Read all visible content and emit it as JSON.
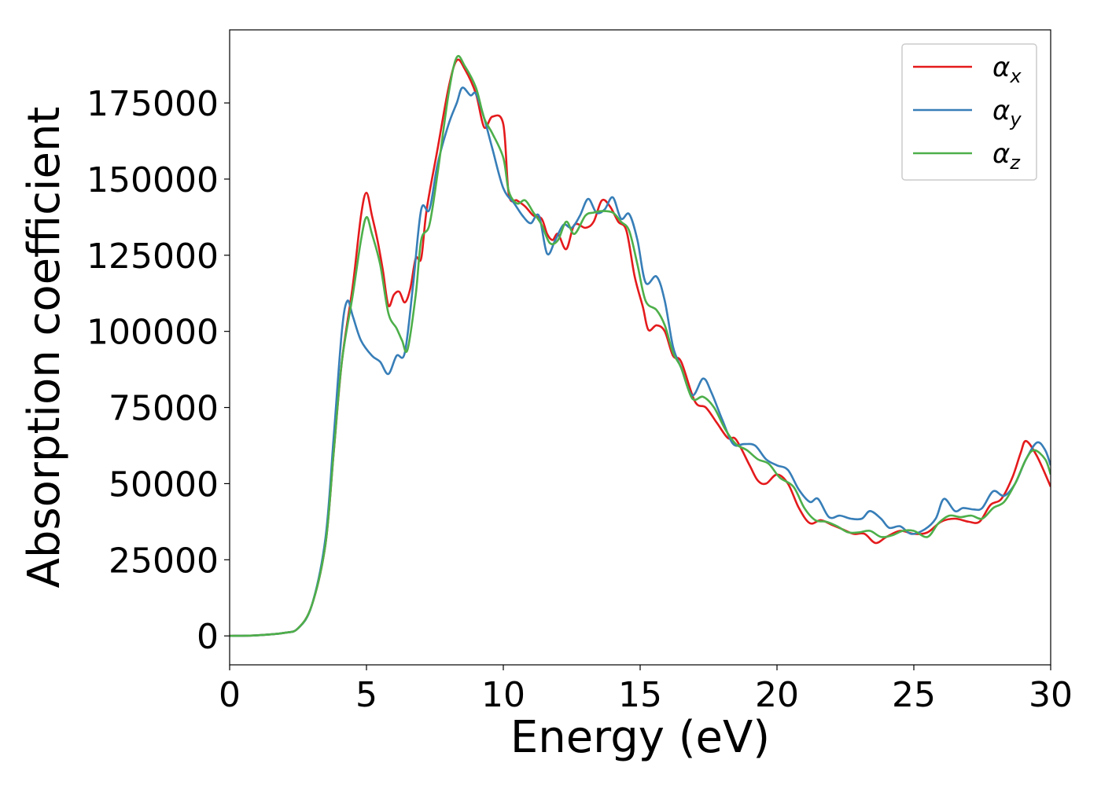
{
  "chart_data": {
    "type": "line",
    "xlabel": "Energy (eV)",
    "ylabel": "Absorption coefficient",
    "xlim": [
      0,
      30
    ],
    "ylim": [
      -9500,
      199000
    ],
    "xticks": [
      0,
      5,
      10,
      15,
      20,
      25,
      30
    ],
    "xtick_labels": [
      "0",
      "5",
      "10",
      "15",
      "20",
      "25",
      "30"
    ],
    "yticks": [
      0,
      25000,
      50000,
      75000,
      100000,
      125000,
      150000,
      175000
    ],
    "ytick_labels": [
      "0",
      "25000",
      "50000",
      "75000",
      "100000",
      "125000",
      "150000",
      "175000"
    ],
    "grid": false,
    "legend_position": "top-right",
    "series": [
      {
        "name": "αx",
        "legend_base": "α",
        "legend_sub": "x",
        "color": "#e41a1c",
        "points": [
          [
            0,
            0
          ],
          [
            1,
            200
          ],
          [
            2,
            1000
          ],
          [
            2.5,
            2500
          ],
          [
            3,
            10000
          ],
          [
            3.5,
            30000
          ],
          [
            3.8,
            60000
          ],
          [
            4.1,
            90000
          ],
          [
            4.5,
            115000
          ],
          [
            4.8,
            138000
          ],
          [
            5.0,
            145500
          ],
          [
            5.2,
            138000
          ],
          [
            5.4,
            130000
          ],
          [
            5.6,
            120000
          ],
          [
            5.8,
            108500
          ],
          [
            6.0,
            112000
          ],
          [
            6.2,
            113000
          ],
          [
            6.4,
            109500
          ],
          [
            6.6,
            114000
          ],
          [
            6.8,
            124000
          ],
          [
            7.0,
            124000
          ],
          [
            7.2,
            140000
          ],
          [
            7.6,
            160000
          ],
          [
            8.0,
            180000
          ],
          [
            8.3,
            189000
          ],
          [
            8.6,
            186000
          ],
          [
            9.0,
            178000
          ],
          [
            9.3,
            167000
          ],
          [
            9.6,
            170500
          ],
          [
            10.0,
            168000
          ],
          [
            10.2,
            145000
          ],
          [
            10.5,
            143000
          ],
          [
            10.8,
            141000
          ],
          [
            11.1,
            138000
          ],
          [
            11.4,
            137000
          ],
          [
            11.6,
            132000
          ],
          [
            11.8,
            130000
          ],
          [
            12.0,
            132000
          ],
          [
            12.3,
            127000
          ],
          [
            12.6,
            135000
          ],
          [
            13.0,
            134000
          ],
          [
            13.3,
            136000
          ],
          [
            13.6,
            143000
          ],
          [
            13.9,
            141000
          ],
          [
            14.2,
            136000
          ],
          [
            14.5,
            133000
          ],
          [
            14.8,
            118000
          ],
          [
            15.1,
            108000
          ],
          [
            15.3,
            100500
          ],
          [
            15.6,
            102000
          ],
          [
            15.9,
            100000
          ],
          [
            16.2,
            92000
          ],
          [
            16.5,
            90000
          ],
          [
            17.0,
            77000
          ],
          [
            17.4,
            75000
          ],
          [
            17.8,
            70000
          ],
          [
            18.2,
            65000
          ],
          [
            18.5,
            64500
          ],
          [
            19.0,
            56000
          ],
          [
            19.3,
            51000
          ],
          [
            19.6,
            50000
          ],
          [
            20.0,
            53000
          ],
          [
            20.4,
            50000
          ],
          [
            20.8,
            42000
          ],
          [
            21.2,
            37000
          ],
          [
            21.6,
            38000
          ],
          [
            22.0,
            36500
          ],
          [
            22.4,
            35000
          ],
          [
            22.8,
            33500
          ],
          [
            23.2,
            33500
          ],
          [
            23.6,
            30500
          ],
          [
            24.0,
            32500
          ],
          [
            24.5,
            34500
          ],
          [
            25.0,
            33500
          ],
          [
            25.5,
            34000
          ],
          [
            26.0,
            37500
          ],
          [
            26.5,
            38500
          ],
          [
            27.0,
            37500
          ],
          [
            27.4,
            37500
          ],
          [
            27.8,
            43000
          ],
          [
            28.2,
            45000
          ],
          [
            28.6,
            52000
          ],
          [
            28.9,
            60000
          ],
          [
            29.1,
            64000
          ],
          [
            29.5,
            59000
          ],
          [
            30,
            49000
          ]
        ]
      },
      {
        "name": "αy",
        "legend_base": "α",
        "legend_sub": "y",
        "color": "#377eb8",
        "points": [
          [
            0,
            0
          ],
          [
            1,
            200
          ],
          [
            2,
            1000
          ],
          [
            2.5,
            2500
          ],
          [
            3,
            10000
          ],
          [
            3.5,
            32000
          ],
          [
            3.8,
            65000
          ],
          [
            4.1,
            100000
          ],
          [
            4.3,
            110000
          ],
          [
            4.5,
            105000
          ],
          [
            4.8,
            97000
          ],
          [
            5.2,
            92000
          ],
          [
            5.5,
            90000
          ],
          [
            5.8,
            86000
          ],
          [
            6.1,
            92000
          ],
          [
            6.4,
            93000
          ],
          [
            6.7,
            115000
          ],
          [
            7.0,
            140000
          ],
          [
            7.3,
            140000
          ],
          [
            7.6,
            155000
          ],
          [
            8.0,
            168000
          ],
          [
            8.3,
            175000
          ],
          [
            8.5,
            180000
          ],
          [
            8.8,
            177500
          ],
          [
            9.0,
            178000
          ],
          [
            9.3,
            170000
          ],
          [
            9.6,
            160000
          ],
          [
            10.0,
            147000
          ],
          [
            10.4,
            142000
          ],
          [
            10.7,
            138000
          ],
          [
            11.0,
            135500
          ],
          [
            11.3,
            138000
          ],
          [
            11.6,
            125500
          ],
          [
            11.9,
            130000
          ],
          [
            12.2,
            135000
          ],
          [
            12.5,
            134000
          ],
          [
            12.8,
            138000
          ],
          [
            13.1,
            143500
          ],
          [
            13.4,
            139000
          ],
          [
            13.7,
            140000
          ],
          [
            14.0,
            144000
          ],
          [
            14.3,
            137000
          ],
          [
            14.6,
            138500
          ],
          [
            14.9,
            130000
          ],
          [
            15.2,
            116000
          ],
          [
            15.6,
            118000
          ],
          [
            15.9,
            110000
          ],
          [
            16.2,
            95000
          ],
          [
            16.5,
            88000
          ],
          [
            16.9,
            79000
          ],
          [
            17.3,
            84500
          ],
          [
            17.6,
            80000
          ],
          [
            18.0,
            71000
          ],
          [
            18.4,
            63000
          ],
          [
            18.8,
            63000
          ],
          [
            19.2,
            62500
          ],
          [
            19.6,
            58000
          ],
          [
            20.0,
            56000
          ],
          [
            20.4,
            54500
          ],
          [
            20.8,
            48000
          ],
          [
            21.2,
            44000
          ],
          [
            21.5,
            45000
          ],
          [
            21.9,
            39000
          ],
          [
            22.3,
            39500
          ],
          [
            22.7,
            38500
          ],
          [
            23.1,
            38500
          ],
          [
            23.4,
            41000
          ],
          [
            23.8,
            38500
          ],
          [
            24.1,
            35500
          ],
          [
            24.5,
            36000
          ],
          [
            24.9,
            33500
          ],
          [
            25.4,
            35000
          ],
          [
            25.8,
            38500
          ],
          [
            26.1,
            45000
          ],
          [
            26.5,
            41000
          ],
          [
            26.8,
            42000
          ],
          [
            27.2,
            41500
          ],
          [
            27.5,
            42000
          ],
          [
            27.9,
            47500
          ],
          [
            28.3,
            46000
          ],
          [
            28.7,
            50000
          ],
          [
            29.1,
            58000
          ],
          [
            29.5,
            63500
          ],
          [
            29.8,
            61000
          ],
          [
            30,
            56000
          ]
        ]
      },
      {
        "name": "αz",
        "legend_base": "α",
        "legend_sub": "z",
        "color": "#4daf4a",
        "points": [
          [
            0,
            0
          ],
          [
            1,
            200
          ],
          [
            2,
            1000
          ],
          [
            2.5,
            2500
          ],
          [
            3,
            10000
          ],
          [
            3.5,
            30000
          ],
          [
            3.8,
            60000
          ],
          [
            4.1,
            90000
          ],
          [
            4.5,
            112000
          ],
          [
            4.8,
            130000
          ],
          [
            5.0,
            137500
          ],
          [
            5.2,
            132000
          ],
          [
            5.5,
            122000
          ],
          [
            5.8,
            106000
          ],
          [
            6.1,
            101000
          ],
          [
            6.3,
            97000
          ],
          [
            6.5,
            94000
          ],
          [
            6.8,
            112000
          ],
          [
            7.0,
            130000
          ],
          [
            7.3,
            135000
          ],
          [
            7.6,
            152000
          ],
          [
            8.0,
            178000
          ],
          [
            8.3,
            190000
          ],
          [
            8.6,
            187000
          ],
          [
            9.0,
            180000
          ],
          [
            9.3,
            170000
          ],
          [
            9.6,
            165000
          ],
          [
            10.0,
            157000
          ],
          [
            10.2,
            146000
          ],
          [
            10.5,
            142000
          ],
          [
            10.8,
            143000
          ],
          [
            11.1,
            139000
          ],
          [
            11.4,
            135000
          ],
          [
            11.7,
            129000
          ],
          [
            12.0,
            130000
          ],
          [
            12.3,
            136000
          ],
          [
            12.6,
            132000
          ],
          [
            13.0,
            138000
          ],
          [
            13.3,
            139000
          ],
          [
            13.6,
            139500
          ],
          [
            14.0,
            139000
          ],
          [
            14.3,
            136000
          ],
          [
            14.6,
            133000
          ],
          [
            14.9,
            122000
          ],
          [
            15.2,
            110000
          ],
          [
            15.6,
            107000
          ],
          [
            15.9,
            102000
          ],
          [
            16.2,
            93000
          ],
          [
            16.5,
            88000
          ],
          [
            16.9,
            78000
          ],
          [
            17.3,
            78500
          ],
          [
            17.7,
            75000
          ],
          [
            18.1,
            68000
          ],
          [
            18.5,
            63000
          ],
          [
            18.9,
            61000
          ],
          [
            19.3,
            58000
          ],
          [
            19.7,
            56500
          ],
          [
            20.1,
            52000
          ],
          [
            20.6,
            49000
          ],
          [
            21.0,
            42000
          ],
          [
            21.4,
            38000
          ],
          [
            21.8,
            37500
          ],
          [
            22.2,
            36000
          ],
          [
            22.6,
            34000
          ],
          [
            23.0,
            34000
          ],
          [
            23.4,
            34500
          ],
          [
            23.8,
            32500
          ],
          [
            24.2,
            33000
          ],
          [
            24.6,
            34500
          ],
          [
            25.0,
            34500
          ],
          [
            25.5,
            32500
          ],
          [
            25.9,
            37000
          ],
          [
            26.3,
            39500
          ],
          [
            26.7,
            39000
          ],
          [
            27.1,
            39500
          ],
          [
            27.5,
            38500
          ],
          [
            27.9,
            42000
          ],
          [
            28.3,
            44000
          ],
          [
            28.7,
            50000
          ],
          [
            29.1,
            58000
          ],
          [
            29.4,
            61000
          ],
          [
            29.8,
            58000
          ],
          [
            30,
            53000
          ]
        ]
      }
    ]
  }
}
